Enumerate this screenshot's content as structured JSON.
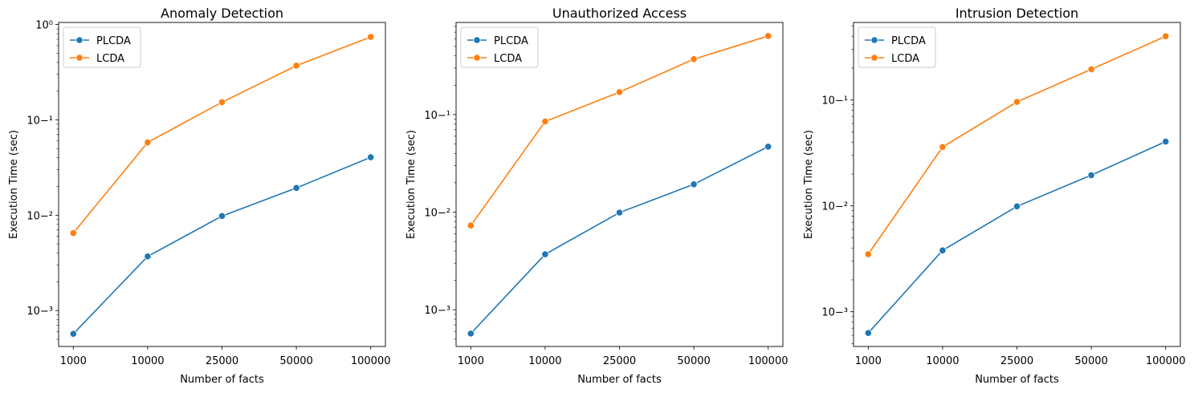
{
  "chart_data": [
    {
      "type": "line",
      "title": "Anomaly Detection",
      "xlabel": "Number of facts",
      "ylabel": "Execution Time (sec)",
      "yscale": "log",
      "ylim": [
        0.00042,
        1.05
      ],
      "yticks": [
        0.001,
        0.01,
        0.1,
        1
      ],
      "categories": [
        "1000",
        "10000",
        "25000",
        "50000",
        "100000"
      ],
      "legend": "upper-left",
      "series": [
        {
          "name": "PLCDA",
          "color": "#1f77b4",
          "values": [
            0.00057,
            0.0037,
            0.0098,
            0.0193,
            0.0405
          ]
        },
        {
          "name": "LCDA",
          "color": "#ff7f0e",
          "values": [
            0.0065,
            0.058,
            0.153,
            0.37,
            0.74
          ]
        }
      ]
    },
    {
      "type": "line",
      "title": "Unauthorized Access",
      "xlabel": "Number of facts",
      "ylabel": "Execution Time (sec)",
      "yscale": "log",
      "ylim": [
        0.00042,
        0.88
      ],
      "yticks": [
        0.001,
        0.01,
        0.1
      ],
      "categories": [
        "1000",
        "10000",
        "25000",
        "50000",
        "100000"
      ],
      "legend": "upper-left",
      "series": [
        {
          "name": "PLCDA",
          "color": "#1f77b4",
          "values": [
            0.00057,
            0.0037,
            0.0099,
            0.0193,
            0.047
          ]
        },
        {
          "name": "LCDA",
          "color": "#ff7f0e",
          "values": [
            0.0073,
            0.085,
            0.17,
            0.37,
            0.64
          ]
        }
      ]
    },
    {
      "type": "line",
      "title": "Intrusion Detection",
      "xlabel": "Number of facts",
      "ylabel": "Execution Time (sec)",
      "yscale": "log",
      "ylim": [
        0.00047,
        0.54
      ],
      "yticks": [
        0.001,
        0.01,
        0.1
      ],
      "categories": [
        "1000",
        "10000",
        "25000",
        "50000",
        "100000"
      ],
      "legend": "upper-left",
      "series": [
        {
          "name": "PLCDA",
          "color": "#1f77b4",
          "values": [
            0.00063,
            0.0038,
            0.0099,
            0.0195,
            0.0405
          ]
        },
        {
          "name": "LCDA",
          "color": "#ff7f0e",
          "values": [
            0.0035,
            0.036,
            0.096,
            0.195,
            0.4
          ]
        }
      ]
    }
  ]
}
